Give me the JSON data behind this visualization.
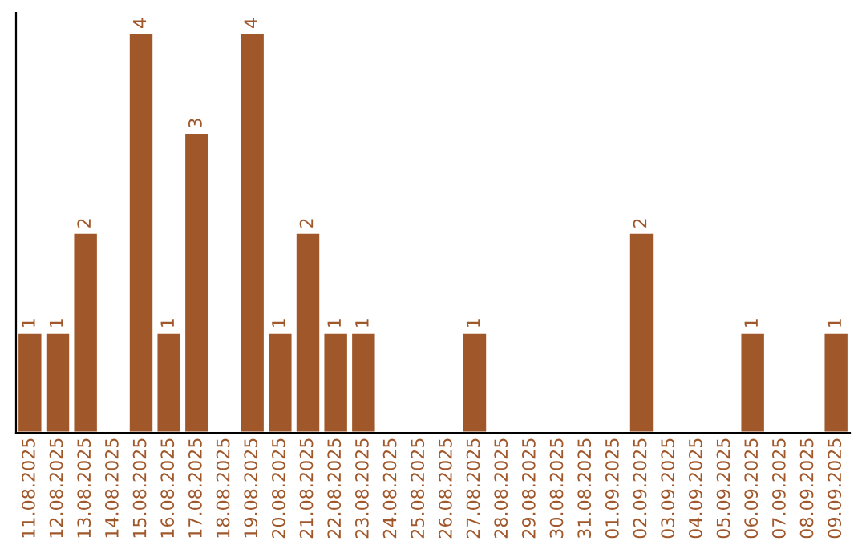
{
  "chart_data": {
    "type": "bar",
    "categories": [
      "11.08.2025",
      "12.08.2025",
      "13.08.2025",
      "14.08.2025",
      "15.08.2025",
      "16.08.2025",
      "17.08.2025",
      "18.08.2025",
      "19.08.2025",
      "20.08.2025",
      "21.08.2025",
      "22.08.2025",
      "23.08.2025",
      "24.08.2025",
      "25.08.2025",
      "26.08.2025",
      "27.08.2025",
      "28.08.2025",
      "29.08.2025",
      "30.08.2025",
      "31.08.2025",
      "01.09.2025",
      "02.09.2025",
      "03.09.2025",
      "04.09.2025",
      "05.09.2025",
      "06.09.2025",
      "07.09.2025",
      "08.09.2025",
      "09.09.2025"
    ],
    "values": [
      1,
      1,
      2,
      null,
      4,
      1,
      3,
      null,
      4,
      1,
      2,
      1,
      1,
      null,
      null,
      null,
      1,
      null,
      null,
      null,
      null,
      null,
      2,
      null,
      null,
      null,
      1,
      null,
      null,
      1
    ],
    "value_labels": [
      "1",
      "1",
      "2",
      null,
      "4",
      "1",
      "3",
      null,
      "4",
      "1",
      "2",
      "1",
      "1",
      null,
      null,
      null,
      "1",
      null,
      null,
      null,
      null,
      null,
      "2",
      null,
      null,
      null,
      "1",
      null,
      null,
      "1"
    ],
    "color": "#a0572a",
    "tick_labels": "x",
    "grid": false,
    "legend": false
  }
}
